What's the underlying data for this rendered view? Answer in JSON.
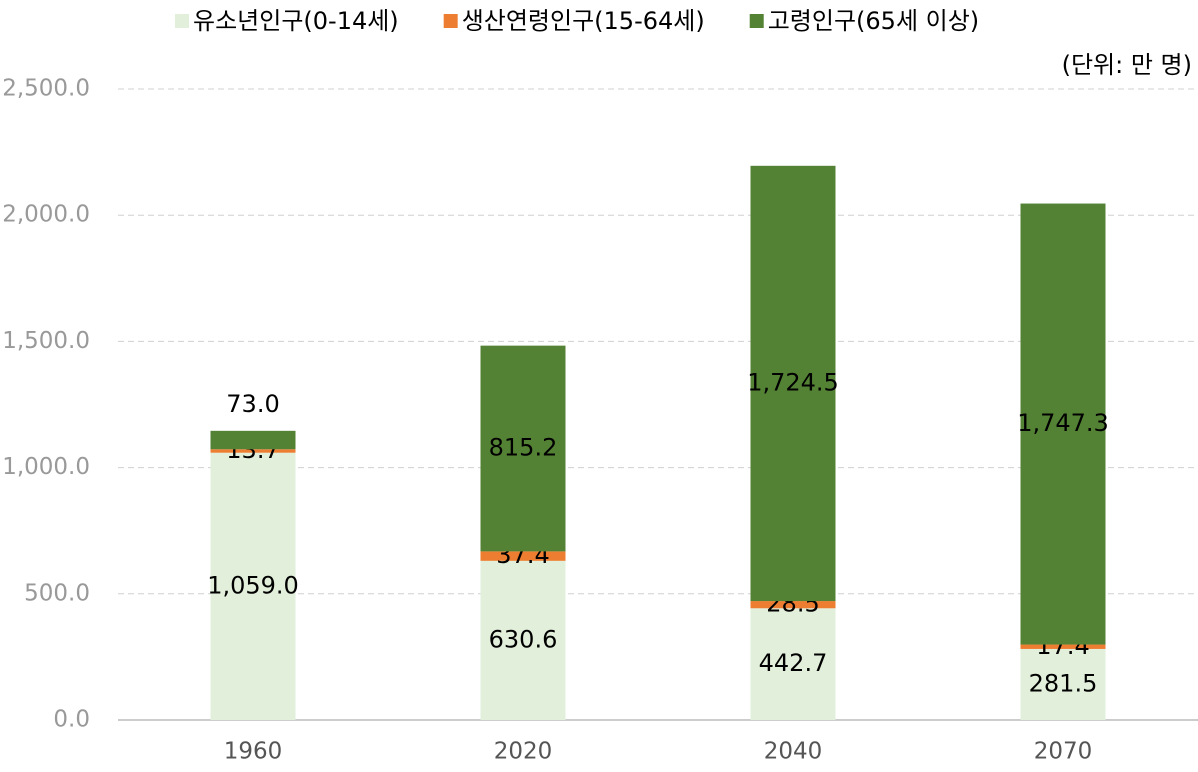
{
  "chart_data": {
    "type": "stacked_bar",
    "unit": "(단위: 만 명)",
    "categories": [
      "1960",
      "2020",
      "2040",
      "2070"
    ],
    "series": [
      {
        "name": "유소년인구(0-14세)",
        "color": "#e2efda",
        "values": [
          1059.0,
          630.6,
          442.7,
          281.5
        ],
        "value_labels": [
          "1,059.0",
          "630.6",
          "442.7",
          "281.5"
        ]
      },
      {
        "name": "생산연령인구(15-64세)",
        "color": "#ed7d31",
        "values": [
          13.7,
          37.4,
          28.5,
          17.4
        ],
        "value_labels": [
          "13.7",
          "37.4",
          "28.5",
          "17.4"
        ]
      },
      {
        "name": "고령인구(65세 이상)",
        "color": "#548235",
        "values": [
          73.0,
          815.2,
          1724.5,
          1747.3
        ],
        "value_labels": [
          "73.0",
          "815.2",
          "1,724.5",
          "1,747.3"
        ]
      }
    ],
    "ylim": [
      0,
      2500
    ],
    "yticks": [
      {
        "value": 0,
        "label": "0.0"
      },
      {
        "value": 500,
        "label": "500.0"
      },
      {
        "value": 1000,
        "label": "1,000.0"
      },
      {
        "value": 1500,
        "label": "1,500.0"
      },
      {
        "value": 2000,
        "label": "2,000.0"
      },
      {
        "value": 2500,
        "label": "2,500.0"
      }
    ],
    "grid": true,
    "legend": "top"
  }
}
